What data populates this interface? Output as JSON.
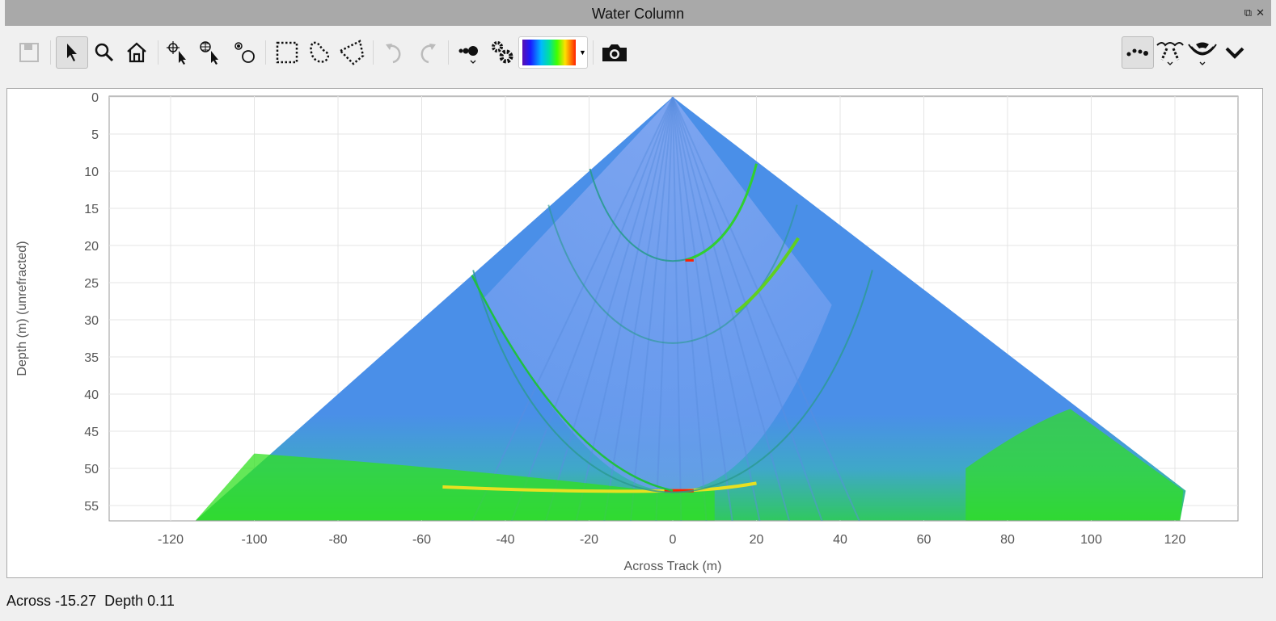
{
  "window": {
    "title": "Water Column",
    "restore_icon": "restore-icon",
    "close_icon": "close-icon"
  },
  "toolbar": {
    "left": [
      "save-icon",
      "pointer-icon",
      "zoom-icon",
      "home-icon",
      "pick-point-icon",
      "pick-geo-icon",
      "pick-target-icon",
      "rect-select-icon",
      "lasso-select-icon",
      "polygon-select-icon",
      "undo-icon",
      "redo-icon",
      "points-dropdown-icon",
      "settings-icon",
      "colormap-dropdown",
      "camera-icon"
    ],
    "right": [
      "soundings-icon",
      "beam-pattern-dropdown-icon",
      "sonar-fan-dropdown-icon",
      "chevron-down-icon"
    ],
    "colormap": [
      "#5a0fb0",
      "#1a1aff",
      "#00b8ff",
      "#00e0a0",
      "#40ff00",
      "#ffe000",
      "#ff2000"
    ]
  },
  "chart_data": {
    "type": "heatmap",
    "title": "",
    "xlabel": "Across Track (m)",
    "ylabel": "Depth (m) (unrefracted)",
    "xlim": [
      -135,
      135
    ],
    "ylim": [
      57,
      0
    ],
    "xticks": [
      "-120",
      "-100",
      "-80",
      "-60",
      "-40",
      "-20",
      "0",
      "20",
      "40",
      "60",
      "80",
      "100",
      "120"
    ],
    "yticks": [
      "0",
      "5",
      "10",
      "15",
      "20",
      "25",
      "30",
      "35",
      "40",
      "45",
      "50",
      "55"
    ],
    "grid": true,
    "fan": {
      "apex": [
        0,
        0
      ],
      "left_edge_bottom": [
        -114,
        57
      ],
      "right_edge_bottom": [
        122,
        53
      ]
    },
    "seafloor_depth": 53,
    "colors": {
      "background": "#4a8fe8",
      "inner": "#86a8f0",
      "strong": "#30e020",
      "peak": "#ff2000"
    }
  },
  "status": {
    "across_label": "Across",
    "across": "-15.27",
    "depth_label": "Depth",
    "depth": "0.11"
  }
}
